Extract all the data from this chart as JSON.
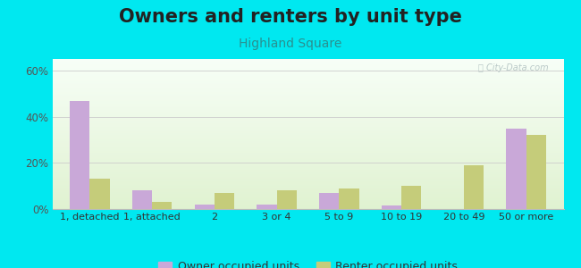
{
  "title": "Owners and renters by unit type",
  "subtitle": "Highland Square",
  "categories": [
    "1, detached",
    "1, attached",
    "2",
    "3 or 4",
    "5 to 9",
    "10 to 19",
    "20 to 49",
    "50 or more"
  ],
  "owner_values": [
    47,
    8,
    2,
    2,
    7,
    1.5,
    0,
    35
  ],
  "renter_values": [
    13,
    3,
    7,
    8,
    9,
    10,
    19,
    32
  ],
  "owner_color": "#c9a8d8",
  "renter_color": "#c5cc7a",
  "ylim": [
    0,
    65
  ],
  "yticks": [
    0,
    20,
    40,
    60
  ],
  "ytick_labels": [
    "0%",
    "20%",
    "40%",
    "60%"
  ],
  "background_outer": "#00e8f0",
  "legend_owner": "Owner occupied units",
  "legend_renter": "Renter occupied units",
  "bar_width": 0.32,
  "title_fontsize": 15,
  "subtitle_fontsize": 10,
  "title_color": "#222222",
  "subtitle_color": "#2a9090"
}
